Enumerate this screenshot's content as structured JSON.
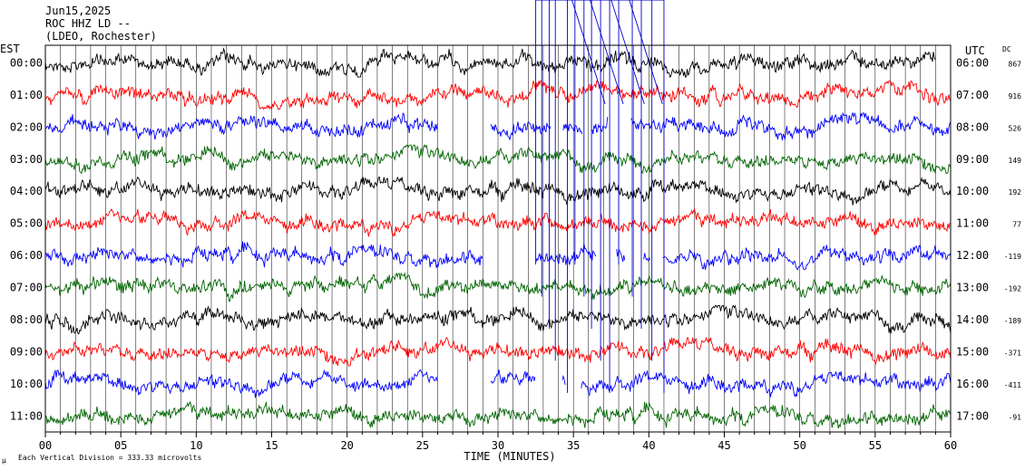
{
  "header": {
    "date": "Jun15,2025",
    "station": "ROC HHZ LD --",
    "network": "(LDEO, Rochester)"
  },
  "left_axis_title": "EST",
  "right_axis_title": "UTC",
  "dc_title": "DC",
  "footer": {
    "symbol": "μ",
    "scale_note": "Each Vertical Division =  333.33 microvolts"
  },
  "colors": {
    "palette": [
      "#000000",
      "#ff0000",
      "#0000ff",
      "#006400"
    ],
    "event_lines": "#0000cc",
    "grid": "#000000"
  },
  "chart_data": {
    "type": "line",
    "title": "",
    "xlabel": "TIME (MINUTES)",
    "xlim": [
      0,
      60
    ],
    "x_ticks": [
      "00",
      "05",
      "10",
      "15",
      "20",
      "25",
      "30",
      "35",
      "40",
      "45",
      "50",
      "55",
      "60"
    ],
    "rows": [
      {
        "est": "00:00",
        "utc": "06:00",
        "dc": "867",
        "color": "#000000",
        "gaps": [],
        "end": 59.0
      },
      {
        "est": "01:00",
        "utc": "07:00",
        "dc": "916",
        "color": "#ff0000",
        "gaps": [],
        "end": 60
      },
      {
        "est": "02:00",
        "utc": "08:00",
        "dc": "526",
        "color": "#0000ff",
        "gaps": [
          [
            26.0,
            29.5
          ],
          [
            33.5,
            34.3
          ],
          [
            35.6,
            36.2
          ],
          [
            37.3,
            38.8
          ]
        ],
        "end": 60
      },
      {
        "est": "03:00",
        "utc": "09:00",
        "dc": "149",
        "color": "#006400",
        "gaps": [],
        "end": 60
      },
      {
        "est": "04:00",
        "utc": "10:00",
        "dc": "192",
        "color": "#000000",
        "gaps": [],
        "end": 60
      },
      {
        "est": "05:00",
        "utc": "11:00",
        "dc": "77",
        "color": "#ff0000",
        "gaps": [],
        "end": 60
      },
      {
        "est": "06:00",
        "utc": "12:00",
        "dc": "-119",
        "color": "#0000ff",
        "gaps": [
          [
            29.0,
            32.5
          ],
          [
            36.5,
            37.8
          ],
          [
            38.4,
            39.6
          ],
          [
            40.1,
            40.9
          ]
        ],
        "end": 60
      },
      {
        "est": "07:00",
        "utc": "13:00",
        "dc": "-192",
        "color": "#006400",
        "gaps": [],
        "end": 60
      },
      {
        "est": "08:00",
        "utc": "14:00",
        "dc": "-189",
        "color": "#000000",
        "gaps": [],
        "end": 60
      },
      {
        "est": "09:00",
        "utc": "15:00",
        "dc": "-371",
        "color": "#ff0000",
        "gaps": [],
        "end": 60
      },
      {
        "est": "10:00",
        "utc": "16:00",
        "dc": "-411",
        "color": "#0000ff",
        "gaps": [
          [
            26.0,
            29.5
          ],
          [
            32.5,
            34.2
          ],
          [
            34.5,
            35.5
          ]
        ],
        "end": 60
      },
      {
        "est": "11:00",
        "utc": "17:00",
        "dc": "-91",
        "color": "#006400",
        "gaps": [],
        "end": 60
      }
    ],
    "event_markers_min": [
      32.5,
      32.9,
      33.4,
      33.8,
      34.6,
      35.1,
      35.7,
      36.2,
      36.8,
      37.4,
      38.0,
      38.9,
      39.5,
      40.2,
      41.0
    ],
    "grid": true
  }
}
